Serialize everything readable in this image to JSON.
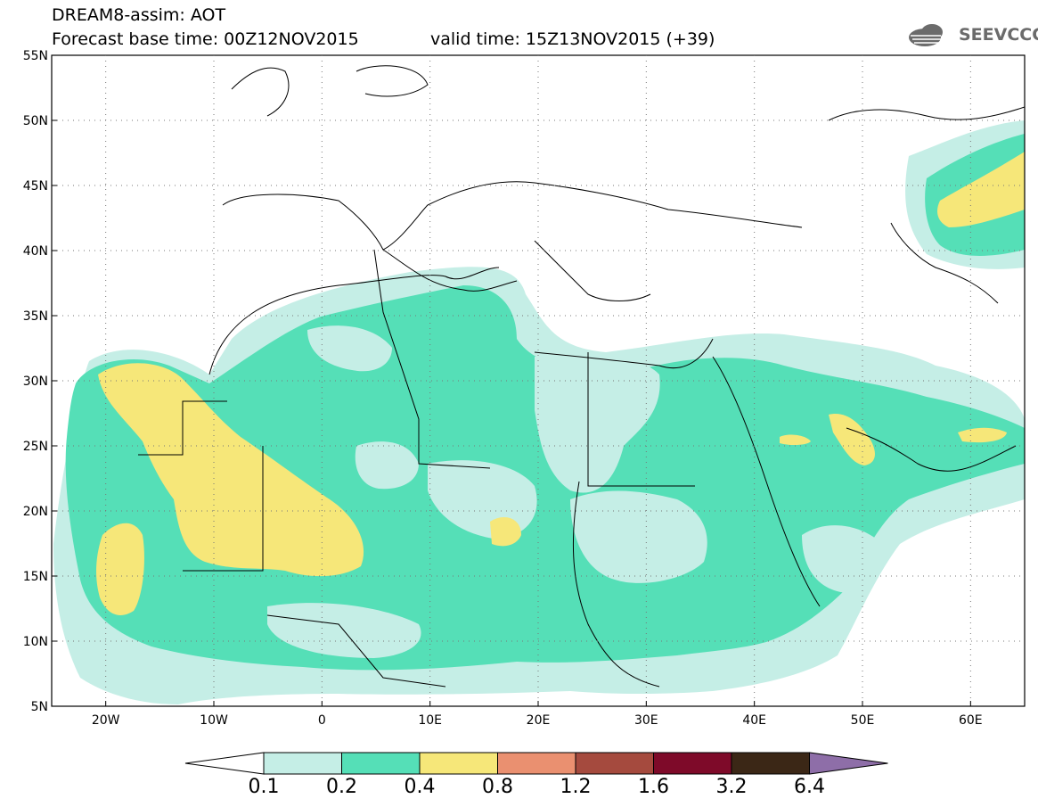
{
  "header": {
    "title_line1": "DREAM8-assim: AOT",
    "title_line2": "Forecast base time: 00Z12NOV2015",
    "valid_time": "valid time: 15Z13NOV2015 (+39)",
    "logo_text": "SEEVCCC",
    "logo_icon": "cloud-icon"
  },
  "map": {
    "lat_labels": [
      "55N",
      "50N",
      "45N",
      "40N",
      "35N",
      "30N",
      "25N",
      "20N",
      "15N",
      "10N",
      "5N"
    ],
    "lon_labels": [
      "20W",
      "10W",
      "0",
      "10E",
      "20E",
      "30E",
      "40E",
      "50E",
      "60E"
    ],
    "extent": {
      "lon_min": -25,
      "lon_max": 65,
      "lat_min": 5,
      "lat_max": 55
    }
  },
  "colorbar": {
    "labels": [
      "0.1",
      "0.2",
      "0.4",
      "0.8",
      "1.2",
      "1.6",
      "3.2",
      "6.4"
    ],
    "colors": [
      "#ffffff",
      "#c5eee6",
      "#55dfb7",
      "#f6e779",
      "#ea9070",
      "#a54a3e",
      "#7e0a29",
      "#3b2716",
      "#8e6ea8"
    ]
  }
}
